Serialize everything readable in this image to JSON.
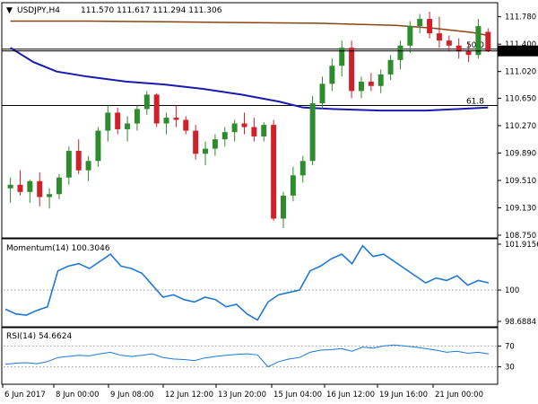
{
  "chart_data": [
    {
      "type": "candlestick",
      "header": {
        "symbol_timeframe": "USDJPY,H4",
        "ohlc": "111.570 111.617 111.294 111.306"
      },
      "y_ticks": [
        108.75,
        109.13,
        109.51,
        109.89,
        110.27,
        110.65,
        111.02,
        111.4,
        111.78
      ],
      "y_tick_labels": [
        "108.750",
        "109.130",
        "109.510",
        "109.890",
        "110.270",
        "110.650",
        "111.020",
        "111.400",
        "111.780"
      ],
      "ylim": [
        108.75,
        111.95
      ],
      "current_price": 111.306,
      "current_price_label": "111.306",
      "fib_levels": [
        {
          "label": "50.0",
          "value": 111.33
        },
        {
          "label": "61.8",
          "value": 110.55
        }
      ],
      "moving_averages": [
        {
          "color": "#8B4513",
          "points": [
            [
              0,
              111.72
            ],
            [
              10,
              111.72
            ],
            [
              20,
              111.71
            ],
            [
              30,
              111.7
            ],
            [
              40,
              111.69
            ],
            [
              50,
              111.66
            ],
            [
              55,
              111.62
            ],
            [
              60,
              111.56
            ],
            [
              62,
              111.52
            ]
          ]
        },
        {
          "color": "#1A1AB0",
          "points": [
            [
              0,
              111.35
            ],
            [
              3,
              111.15
            ],
            [
              6,
              111.02
            ],
            [
              10,
              110.95
            ],
            [
              15,
              110.88
            ],
            [
              20,
              110.84
            ],
            [
              25,
              110.78
            ],
            [
              30,
              110.7
            ],
            [
              35,
              110.6
            ],
            [
              38,
              110.52
            ],
            [
              42,
              110.5
            ],
            [
              48,
              110.48
            ],
            [
              54,
              110.48
            ],
            [
              58,
              110.5
            ],
            [
              62,
              110.52
            ]
          ]
        }
      ],
      "candles": [
        [
          109.4,
          109.55,
          109.2,
          109.45
        ],
        [
          109.45,
          109.65,
          109.3,
          109.35
        ],
        [
          109.35,
          109.52,
          109.2,
          109.5
        ],
        [
          109.5,
          109.62,
          109.15,
          109.28
        ],
        [
          109.28,
          109.4,
          109.12,
          109.32
        ],
        [
          109.32,
          109.6,
          109.25,
          109.55
        ],
        [
          109.55,
          109.98,
          109.45,
          109.92
        ],
        [
          109.92,
          110.08,
          109.6,
          109.65
        ],
        [
          109.65,
          109.85,
          109.5,
          109.78
        ],
        [
          109.78,
          110.25,
          109.7,
          110.2
        ],
        [
          110.2,
          110.55,
          110.05,
          110.45
        ],
        [
          110.45,
          110.52,
          110.15,
          110.22
        ],
        [
          110.22,
          110.4,
          110.05,
          110.3
        ],
        [
          110.3,
          110.55,
          110.2,
          110.5
        ],
        [
          110.5,
          110.75,
          110.42,
          110.7
        ],
        [
          110.7,
          110.72,
          110.25,
          110.3
        ],
        [
          110.3,
          110.45,
          110.15,
          110.38
        ],
        [
          110.38,
          110.55,
          110.25,
          110.35
        ],
        [
          110.35,
          110.4,
          110.15,
          110.2
        ],
        [
          110.2,
          110.28,
          109.8,
          109.88
        ],
        [
          109.88,
          110.05,
          109.72,
          109.95
        ],
        [
          109.95,
          110.15,
          109.85,
          110.08
        ],
        [
          110.08,
          110.25,
          109.98,
          110.18
        ],
        [
          110.18,
          110.35,
          110.05,
          110.3
        ],
        [
          110.3,
          110.45,
          110.15,
          110.25
        ],
        [
          110.25,
          110.38,
          110.05,
          110.12
        ],
        [
          110.12,
          110.32,
          110.05,
          110.28
        ],
        [
          110.28,
          110.35,
          108.95,
          108.98
        ],
        [
          108.98,
          109.35,
          108.85,
          109.3
        ],
        [
          109.3,
          109.7,
          109.22,
          109.58
        ],
        [
          109.58,
          109.85,
          109.48,
          109.78
        ],
        [
          109.78,
          110.68,
          109.72,
          110.58
        ],
        [
          110.58,
          110.95,
          110.5,
          110.85
        ],
        [
          110.85,
          111.2,
          110.75,
          111.1
        ],
        [
          111.1,
          111.45,
          110.95,
          111.35
        ],
        [
          111.35,
          111.45,
          110.65,
          110.75
        ],
        [
          110.75,
          110.95,
          110.65,
          110.88
        ],
        [
          110.88,
          111.0,
          110.75,
          110.82
        ],
        [
          110.82,
          111.05,
          110.72,
          110.98
        ],
        [
          110.98,
          111.25,
          110.9,
          111.18
        ],
        [
          111.18,
          111.45,
          111.05,
          111.38
        ],
        [
          111.38,
          111.72,
          111.28,
          111.65
        ],
        [
          111.65,
          111.82,
          111.55,
          111.75
        ],
        [
          111.75,
          111.85,
          111.48,
          111.55
        ],
        [
          111.55,
          111.78,
          111.35,
          111.45
        ],
        [
          111.45,
          111.52,
          111.3,
          111.38
        ],
        [
          111.38,
          111.48,
          111.2,
          111.3
        ],
        [
          111.3,
          111.42,
          111.15,
          111.25
        ],
        [
          111.25,
          111.75,
          111.2,
          111.65
        ],
        [
          111.57,
          111.62,
          111.29,
          111.31
        ]
      ]
    },
    {
      "type": "line",
      "title": "Momentum(14) 100.3046",
      "y_tick_labels": [
        "101.9156",
        "100",
        "98.6884"
      ],
      "ylim": [
        98.6884,
        101.9156
      ],
      "reference_line": 100,
      "series": [
        {
          "color": "#1E78D6",
          "values": [
            99.2,
            99.0,
            98.95,
            99.15,
            99.3,
            100.8,
            101.0,
            101.1,
            100.9,
            101.2,
            101.5,
            101.0,
            100.9,
            100.7,
            100.2,
            99.7,
            99.8,
            99.6,
            99.5,
            99.7,
            99.6,
            99.3,
            99.4,
            99.0,
            98.75,
            99.5,
            99.8,
            99.9,
            100.0,
            100.8,
            101.0,
            101.3,
            101.5,
            101.1,
            101.85,
            101.4,
            101.5,
            101.2,
            100.9,
            100.6,
            100.3,
            100.5,
            100.4,
            100.6,
            100.2,
            100.4,
            100.3
          ]
        }
      ]
    },
    {
      "type": "line",
      "title": "RSI(14) 54.6624",
      "y_tick_labels": [
        "70",
        "30"
      ],
      "ylim": [
        0,
        100
      ],
      "reference_lines": [
        70,
        30
      ],
      "series": [
        {
          "color": "#1E78D6",
          "values": [
            35,
            37,
            38,
            36,
            40,
            48,
            50,
            52,
            51,
            55,
            58,
            52,
            50,
            52,
            55,
            48,
            45,
            44,
            42,
            47,
            50,
            52,
            54,
            55,
            53,
            30,
            40,
            45,
            48,
            58,
            62,
            63,
            65,
            60,
            68,
            66,
            70,
            72,
            70,
            68,
            65,
            62,
            58,
            60,
            56,
            58,
            54.7
          ]
        }
      ]
    }
  ],
  "x_axis_labels": [
    "6 Jun 2017",
    "8 Jun 00:00",
    "9 Jun 08:00",
    "12 Jun 12:00",
    "13 Jun 20:00",
    "15 Jun 04:00",
    "16 Jun 12:00",
    "19 Jun 16:00",
    "21 Jun 00:00"
  ],
  "colors": {
    "bull": "#2E8B2E",
    "bear": "#D0202A",
    "blue": "#1E78D6",
    "grid_dot": "#999999"
  }
}
